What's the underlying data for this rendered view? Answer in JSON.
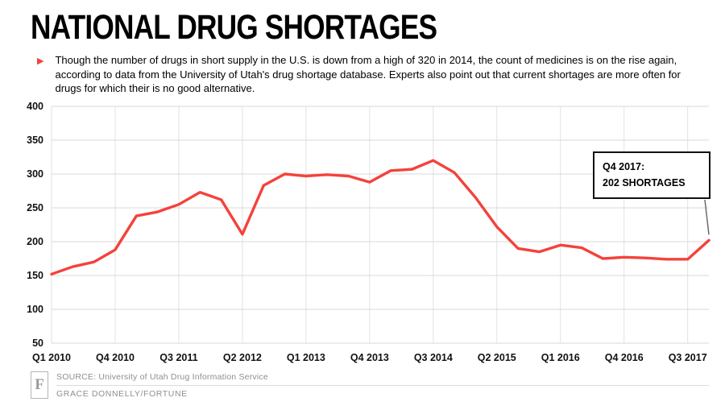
{
  "page": {
    "title": "NATIONAL DRUG SHORTAGES",
    "intro": "Though the number of drugs in short supply in the U.S. is down from a high of 320 in 2014, the count of medicines is on the rise again, according to data from the University of Utah's drug shortage database. Experts also point out that current shortages are more often for drugs for which their is no good alternative."
  },
  "colors": {
    "accent": "#f4423b",
    "grid": "#d8d8d8",
    "vgrid": "#e2e2e2",
    "axis_text": "#111111",
    "muted": "#8f8f8f",
    "connector": "#6b6b6b"
  },
  "annotation": {
    "line1": "Q4 2017:",
    "line2": "202 SHORTAGES"
  },
  "footer": {
    "logo": "F",
    "source": "SOURCE: University of Utah Drug Information Service",
    "credit": "GRACE DONNELLY/FORTUNE"
  },
  "chart_data": {
    "type": "line",
    "title": "National drug shortages by quarter",
    "xlabel": "",
    "ylabel": "",
    "ylim": [
      50,
      400
    ],
    "grid": true,
    "legend": "none",
    "y_ticks": [
      400,
      350,
      300,
      250,
      200,
      150,
      100,
      50
    ],
    "x": [
      "Q1 2010",
      "Q2 2010",
      "Q3 2010",
      "Q4 2010",
      "Q1 2011",
      "Q2 2011",
      "Q3 2011",
      "Q4 2011",
      "Q1 2012",
      "Q2 2012",
      "Q3 2012",
      "Q4 2012",
      "Q1 2013",
      "Q2 2013",
      "Q3 2013",
      "Q4 2013",
      "Q1 2014",
      "Q2 2014",
      "Q3 2014",
      "Q4 2014",
      "Q1 2015",
      "Q2 2015",
      "Q3 2015",
      "Q4 2015",
      "Q1 2016",
      "Q2 2016",
      "Q3 2016",
      "Q4 2016",
      "Q1 2017",
      "Q2 2017",
      "Q3 2017",
      "Q4 2017"
    ],
    "values": [
      152,
      163,
      170,
      188,
      238,
      244,
      255,
      273,
      262,
      211,
      283,
      300,
      297,
      299,
      297,
      288,
      305,
      307,
      320,
      302,
      265,
      222,
      190,
      185,
      195,
      191,
      175,
      177,
      176,
      174,
      174,
      202
    ],
    "x_tick_labels": [
      "Q1 2010",
      "Q4 2010",
      "Q3 2011",
      "Q2 2012",
      "Q1 2013",
      "Q4 2013",
      "Q3 2014",
      "Q2 2015",
      "Q1 2016",
      "Q4 2016",
      "Q3 2017"
    ],
    "x_tick_indices": [
      0,
      3,
      6,
      9,
      12,
      15,
      18,
      21,
      24,
      27,
      30
    ],
    "highlight_point": {
      "x": "Q4 2017",
      "value": 202
    }
  }
}
